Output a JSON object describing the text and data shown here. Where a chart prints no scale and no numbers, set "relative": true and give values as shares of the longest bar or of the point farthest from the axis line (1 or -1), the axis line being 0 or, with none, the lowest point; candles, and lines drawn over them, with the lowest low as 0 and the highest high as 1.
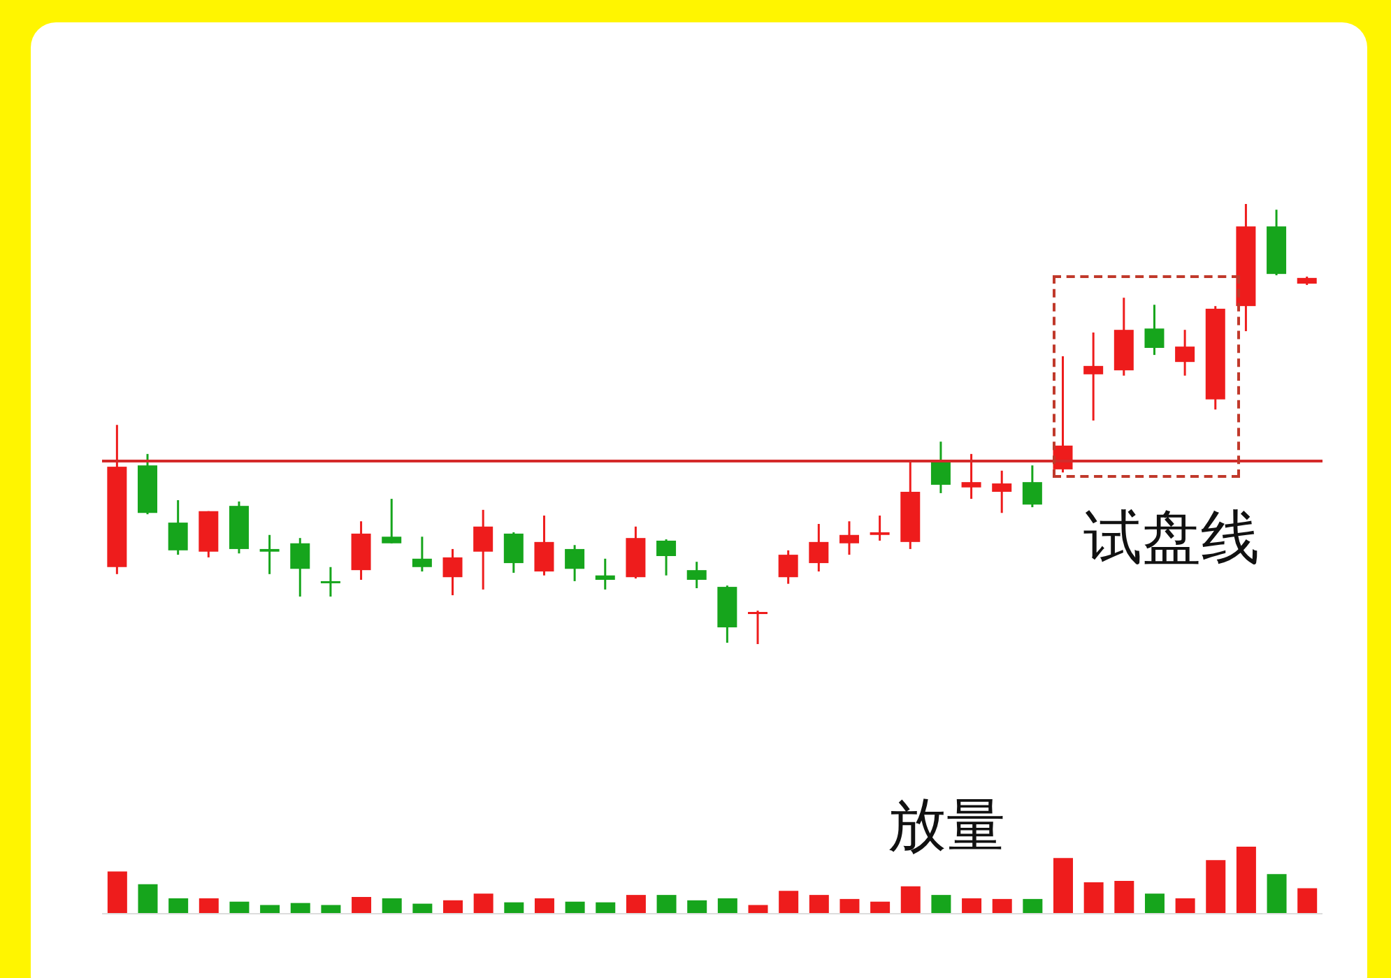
{
  "chart_data": [
    {
      "type": "candlestick",
      "relative": true,
      "categories": [
        null,
        null,
        null,
        null,
        null,
        null,
        null,
        null,
        null,
        null,
        null,
        null,
        null,
        null,
        null,
        null,
        null,
        null,
        null,
        null,
        null,
        null,
        null,
        null,
        null,
        null,
        null,
        null,
        null,
        null,
        null,
        null,
        null,
        null,
        null,
        null,
        null,
        null,
        null,
        null
      ],
      "ohlc": [
        [
          0.175,
          0.498,
          0.159,
          0.403
        ],
        [
          0.406,
          0.432,
          0.295,
          0.298
        ],
        [
          0.276,
          0.327,
          0.203,
          0.213
        ],
        [
          0.21,
          0.302,
          0.197,
          0.302
        ],
        [
          0.314,
          0.324,
          0.206,
          0.216
        ],
        [
          0.216,
          0.248,
          0.159,
          0.21
        ],
        [
          0.229,
          0.241,
          0.108,
          0.171
        ],
        [
          0.143,
          0.175,
          0.108,
          0.14
        ],
        [
          0.168,
          0.279,
          0.146,
          0.251
        ],
        [
          0.244,
          0.33,
          0.229,
          0.229
        ],
        [
          0.194,
          0.244,
          0.165,
          0.175
        ],
        [
          0.152,
          0.216,
          0.111,
          0.197
        ],
        [
          0.21,
          0.305,
          0.124,
          0.267
        ],
        [
          0.251,
          0.254,
          0.162,
          0.184
        ],
        [
          0.165,
          0.292,
          0.156,
          0.232
        ],
        [
          0.216,
          0.225,
          0.143,
          0.171
        ],
        [
          0.156,
          0.194,
          0.124,
          0.146
        ],
        [
          0.152,
          0.267,
          0.149,
          0.241
        ],
        [
          0.235,
          0.238,
          0.156,
          0.2
        ],
        [
          0.168,
          0.187,
          0.127,
          0.146
        ],
        [
          0.13,
          0.133,
          0.003,
          0.038
        ],
        [
          0.07,
          0.076,
          0,
          0.073
        ],
        [
          0.152,
          0.213,
          0.137,
          0.203
        ],
        [
          0.184,
          0.273,
          0.165,
          0.232
        ],
        [
          0.229,
          0.279,
          0.203,
          0.248
        ],
        [
          0.248,
          0.292,
          0.235,
          0.254
        ],
        [
          0.232,
          0.416,
          0.216,
          0.346
        ],
        [
          0.416,
          0.46,
          0.343,
          0.362
        ],
        [
          0.356,
          0.432,
          0.33,
          0.368
        ],
        [
          0.346,
          0.394,
          0.298,
          0.365
        ],
        [
          0.368,
          0.406,
          0.311,
          0.317
        ],
        [
          0.397,
          0.654,
          0.39,
          0.451
        ],
        [
          0.613,
          0.708,
          0.508,
          0.632
        ],
        [
          0.622,
          0.787,
          0.61,
          0.714
        ],
        [
          0.717,
          0.771,
          0.657,
          0.673
        ],
        [
          0.641,
          0.714,
          0.61,
          0.676
        ],
        [
          0.556,
          0.768,
          0.533,
          0.762
        ],
        [
          0.768,
          1,
          0.711,
          0.949
        ],
        [
          0.949,
          0.987,
          0.838,
          0.841
        ],
        [
          0.819,
          0.835,
          0.816,
          0.832
        ]
      ],
      "colors": [
        "#ee1c1c",
        "#16a51c",
        "#16a51c",
        "#ee1c1c",
        "#16a51c",
        "#16a51c",
        "#16a51c",
        "#16a51c",
        "#ee1c1c",
        "#16a51c",
        "#16a51c",
        "#ee1c1c",
        "#ee1c1c",
        "#16a51c",
        "#ee1c1c",
        "#16a51c",
        "#16a51c",
        "#ee1c1c",
        "#16a51c",
        "#16a51c",
        "#16a51c",
        "#ee1c1c",
        "#ee1c1c",
        "#ee1c1c",
        "#ee1c1c",
        "#ee1c1c",
        "#ee1c1c",
        "#16a51c",
        "#ee1c1c",
        "#ee1c1c",
        "#16a51c",
        "#ee1c1c",
        "#ee1c1c",
        "#ee1c1c",
        "#16a51c",
        "#ee1c1c",
        "#ee1c1c",
        "#ee1c1c",
        "#16a51c",
        "#ee1c1c"
      ],
      "ref_lines": [
        {
          "axis": "y",
          "value": 0.416,
          "color": "#d42a2a"
        }
      ],
      "annotations": [
        "试盘线"
      ]
    },
    {
      "type": "bar",
      "relative": true,
      "categories": [
        null,
        null,
        null,
        null,
        null,
        null,
        null,
        null,
        null,
        null,
        null,
        null,
        null,
        null,
        null,
        null,
        null,
        null,
        null,
        null,
        null,
        null,
        null,
        null,
        null,
        null,
        null,
        null,
        null,
        null,
        null,
        null,
        null,
        null,
        null,
        null,
        null,
        null,
        null,
        null
      ],
      "values": [
        0.63,
        0.44,
        0.23,
        0.23,
        0.18,
        0.13,
        0.16,
        0.13,
        0.25,
        0.23,
        0.15,
        0.2,
        0.3,
        0.17,
        0.23,
        0.18,
        0.17,
        0.28,
        0.28,
        0.2,
        0.23,
        0.13,
        0.34,
        0.28,
        0.22,
        0.18,
        0.41,
        0.28,
        0.23,
        0.22,
        0.22,
        0.83,
        0.47,
        0.49,
        0.3,
        0.23,
        0.8,
        1,
        0.59,
        0.38
      ],
      "colors": [
        "#ee1c1c",
        "#16a51c",
        "#16a51c",
        "#ee1c1c",
        "#16a51c",
        "#16a51c",
        "#16a51c",
        "#16a51c",
        "#ee1c1c",
        "#16a51c",
        "#16a51c",
        "#ee1c1c",
        "#ee1c1c",
        "#16a51c",
        "#ee1c1c",
        "#16a51c",
        "#16a51c",
        "#ee1c1c",
        "#16a51c",
        "#16a51c",
        "#16a51c",
        "#ee1c1c",
        "#ee1c1c",
        "#ee1c1c",
        "#ee1c1c",
        "#ee1c1c",
        "#ee1c1c",
        "#16a51c",
        "#ee1c1c",
        "#ee1c1c",
        "#16a51c",
        "#ee1c1c",
        "#ee1c1c",
        "#ee1c1c",
        "#16a51c",
        "#ee1c1c",
        "#ee1c1c",
        "#ee1c1c",
        "#16a51c",
        "#ee1c1c"
      ],
      "annotations": [
        "放量"
      ]
    }
  ]
}
